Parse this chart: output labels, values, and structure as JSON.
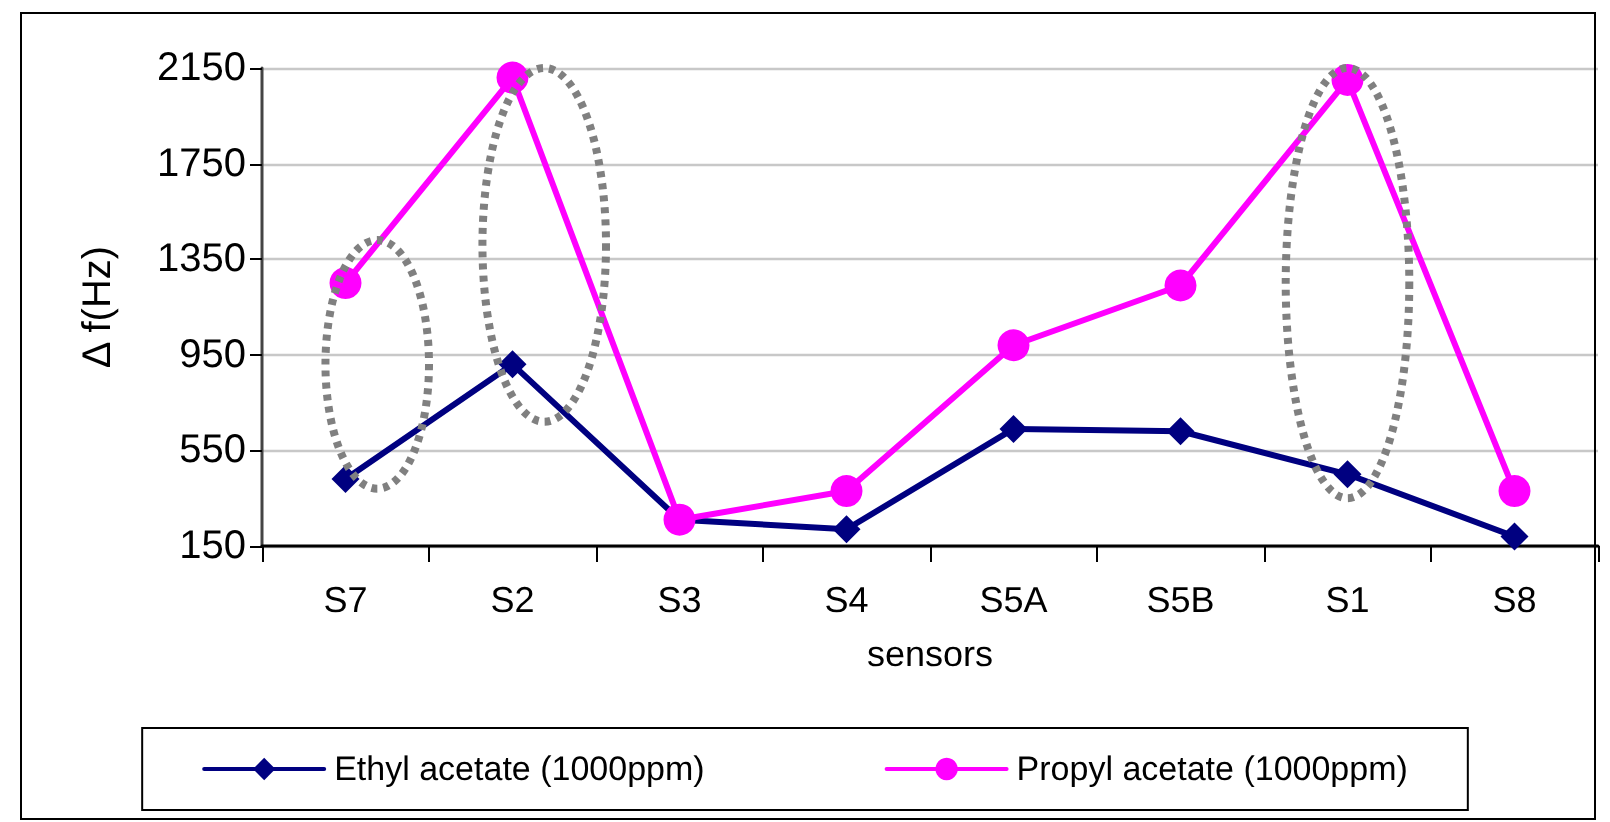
{
  "chart_data": {
    "type": "line",
    "xlabel": "sensors",
    "ylabel": "Δ f(Hz)",
    "categories": [
      "S7",
      "S2",
      "S3",
      "S4",
      "S5A",
      "S5B",
      "S1",
      "S8"
    ],
    "series": [
      {
        "name": "Ethyl acetate (1000ppm)",
        "color": "#000080",
        "marker": "diamond",
        "values": [
          430,
          910,
          260,
          220,
          640,
          630,
          450,
          190
        ]
      },
      {
        "name": "Propyl acetate (1000ppm)",
        "color": "#ff00ff",
        "marker": "circle",
        "values": [
          1250,
          2110,
          260,
          380,
          990,
          1240,
          2100,
          380
        ]
      }
    ],
    "ylim": [
      150,
      2150
    ],
    "yticks": [
      150,
      550,
      950,
      1350,
      1750,
      2150
    ],
    "grid": "y",
    "legend": "bottom",
    "line_style": "solid"
  }
}
